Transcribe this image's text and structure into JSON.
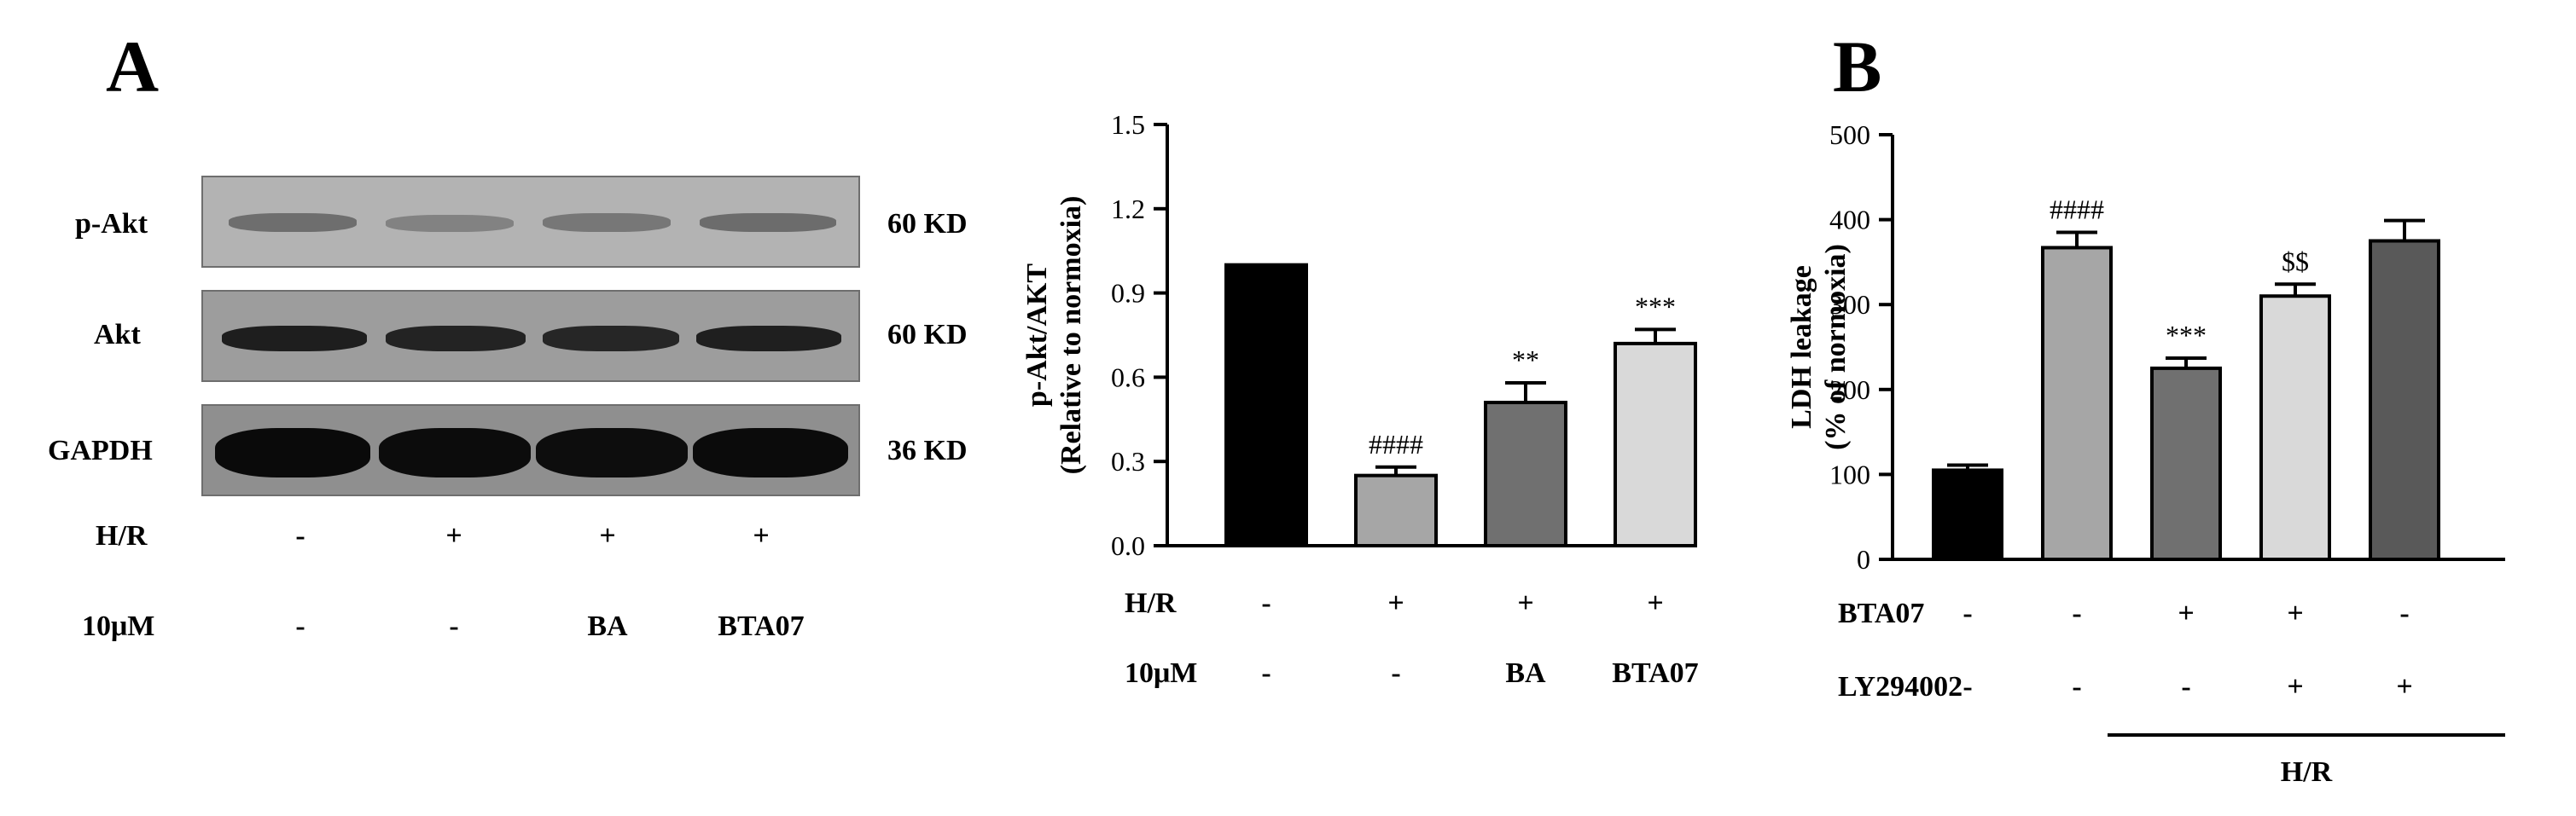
{
  "panel_a": {
    "letter": "A",
    "blot_rows": [
      {
        "protein": "p-Akt",
        "weight": "60 KD"
      },
      {
        "protein": "Akt",
        "weight": "60 KD"
      },
      {
        "protein": "GAPDH",
        "weight": "36 KD"
      }
    ],
    "condition_rows": [
      {
        "label": "H/R",
        "values": [
          "-",
          "+",
          "+",
          "+"
        ]
      },
      {
        "label": "10μM",
        "values": [
          "-",
          "-",
          "BA",
          "BTA07"
        ]
      }
    ]
  },
  "panel_b": {
    "letter": "B"
  },
  "chart_data": [
    {
      "type": "bar",
      "title": "",
      "xlabel": "",
      "ylabel": "p-Akt/AKT",
      "ylabel2": "(Relative to normoxia)",
      "ylim": [
        0,
        1.5
      ],
      "yticks": [
        "0.0",
        "0.3",
        "0.6",
        "0.9",
        "1.2",
        "1.5"
      ],
      "values": [
        1.0,
        0.25,
        0.51,
        0.72
      ],
      "errors": [
        0,
        0.03,
        0.07,
        0.05
      ],
      "colors": [
        "#000000",
        "#a6a6a6",
        "#707070",
        "#d9d9d9"
      ],
      "annotations": [
        "",
        "####",
        "**",
        "***"
      ],
      "condition_rows": [
        {
          "label": "H/R",
          "values": [
            "-",
            "+",
            "+",
            "+"
          ]
        },
        {
          "label": "10μM",
          "values": [
            "-",
            "-",
            "BA",
            "BTA07"
          ]
        }
      ]
    },
    {
      "type": "bar",
      "title": "",
      "xlabel": "",
      "ylabel": "LDH leakage",
      "ylabel2": "(% of normoxia)",
      "ylim": [
        0,
        500
      ],
      "yticks": [
        "0",
        "100",
        "200",
        "300",
        "400",
        "500"
      ],
      "values": [
        105,
        367,
        225,
        310,
        375
      ],
      "errors": [
        6,
        18,
        12,
        14,
        24
      ],
      "colors": [
        "#000000",
        "#a6a6a6",
        "#707070",
        "#d9d9d9",
        "#595959"
      ],
      "annotations": [
        "",
        "####",
        "***",
        "$$",
        ""
      ],
      "condition_rows": [
        {
          "label": "BTA07",
          "values": [
            "-",
            "-",
            "+",
            "+",
            "-"
          ]
        },
        {
          "label": "LY294002",
          "values": [
            "-",
            "-",
            "-",
            "+",
            "+"
          ]
        }
      ],
      "group_label": "H/R"
    }
  ]
}
